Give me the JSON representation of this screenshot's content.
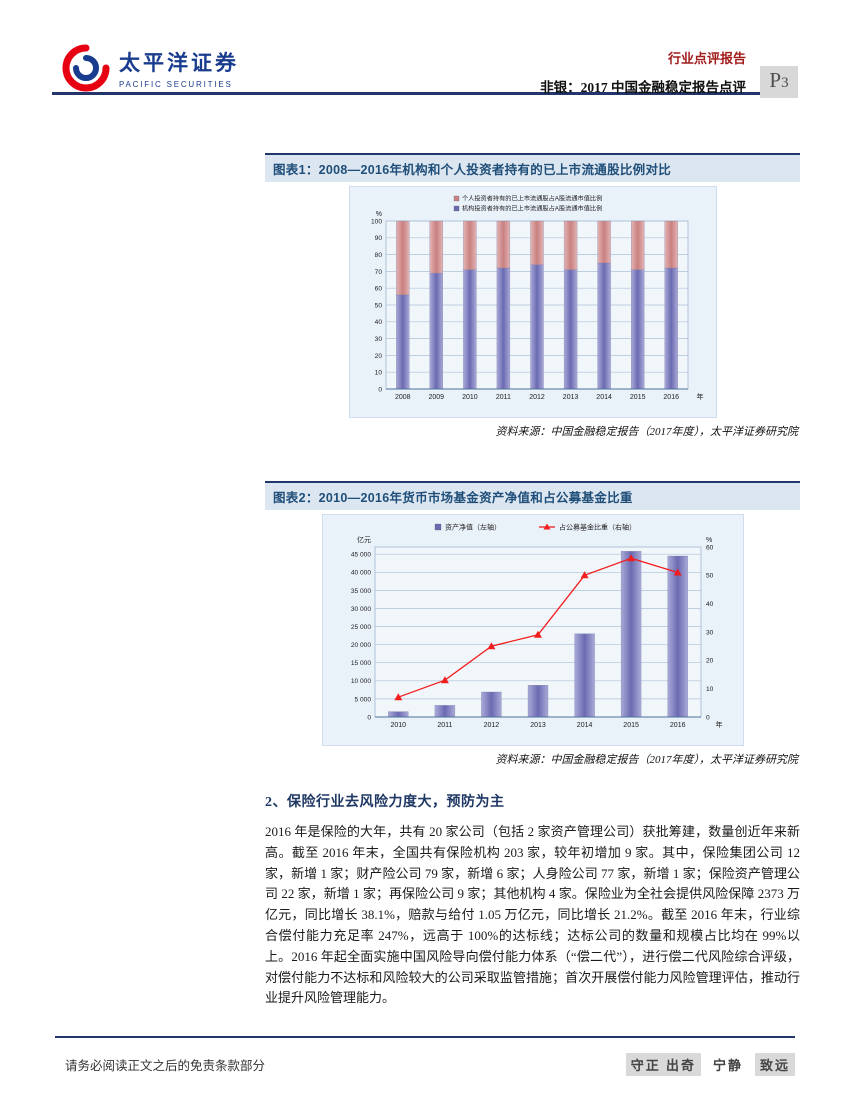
{
  "header": {
    "logo_cn": "太平洋证券",
    "logo_en": "PACIFIC SECURITIES",
    "report_type": "行业点评报告",
    "report_title": "非银：2017 中国金融稳定报告点评",
    "page_letter": "P",
    "page_number": "3"
  },
  "figures": [
    {
      "title": "图表1：2008—2016年机构和个人投资者持有的已上市流通股比例对比",
      "source": "资料来源：中国金融稳定报告（2017年度），太平洋证券研究院",
      "chart_data": {
        "type": "bar",
        "stacked": true,
        "categories": [
          "2008",
          "2009",
          "2010",
          "2011",
          "2012",
          "2013",
          "2014",
          "2015",
          "2016"
        ],
        "series": [
          {
            "name": "机构投资者持有的已上市流通股占A股流通市值比例",
            "color": "#6a6ab2",
            "color_light": "#aaaad8",
            "values": [
              56,
              69,
              71,
              72,
              74,
              71,
              75,
              71,
              72
            ]
          },
          {
            "name": "个人投资者持有的已上市流通股占A股流通市值比例",
            "color": "#c98080",
            "color_light": "#e3b4b4",
            "values": [
              44,
              31,
              29,
              28,
              26,
              29,
              25,
              29,
              28
            ]
          }
        ],
        "legend_reverse": true,
        "ylabel": "%",
        "xlabel": "年",
        "ylim": [
          0,
          100
        ],
        "ystep": 10,
        "grid": true,
        "legend_position": "top"
      }
    },
    {
      "title": "图表2：2010—2016年货币市场基金资产净值和占公募基金比重",
      "source": "资料来源：中国金融稳定报告（2017年度），太平洋证券研究院",
      "chart_data": {
        "type": "combo",
        "categories": [
          "2010",
          "2011",
          "2012",
          "2013",
          "2014",
          "2015",
          "2016"
        ],
        "bar_series": {
          "name": "资产净值（左轴）",
          "color": "#6a6ab2",
          "color_light": "#aaaad8",
          "values": [
            1500,
            3200,
            6900,
            8800,
            23000,
            45800,
            44500
          ]
        },
        "line_series": {
          "name": "占公募基金比重（右轴）",
          "color": "#f21d1d",
          "values": [
            7,
            13,
            25,
            29,
            50,
            56,
            51
          ]
        },
        "left_axis": {
          "unit": "亿元",
          "min": 0,
          "max": 45000,
          "step": 5000
        },
        "right_axis": {
          "unit": "%",
          "min": 0,
          "max": 60,
          "step": 10
        },
        "xlabel": "年",
        "grid": true,
        "legend_position": "top"
      }
    }
  ],
  "section": {
    "heading": "2、保险行业去风险力度大，预防为主",
    "body": "2016 年是保险的大年，共有 20 家公司（包括 2 家资产管理公司）获批筹建，数量创近年来新高。截至 2016 年末，全国共有保险机构 203 家，较年初增加 9 家。其中，保险集团公司 12 家，新增 1 家；财产险公司 79 家，新增 6 家；人身险公司 77 家，新增 1 家；保险资产管理公司 22 家，新增 1 家；再保险公司 9 家；其他机构 4 家。保险业为全社会提供风险保障 2373 万亿元，同比增长 38.1%，赔款与给付 1.05 万亿元，同比增长 21.2%。截至 2016 年末，行业综合偿付能力充足率 247%，远高于 100%的达标线；达标公司的数量和规模占比均在 99%以上。2016 年起全面实施中国风险导向偿付能力体系（“偿二代”），进行偿二代风险综合评级，对偿付能力不达标和风险较大的公司采取监管措施；首次开展偿付能力风险管理评估，推动行业提升风险管理能力。"
  },
  "footer": {
    "disclaimer": "请务必阅读正文之后的免责条款部分",
    "slogan": [
      {
        "text": "守正 出奇",
        "highlight": true
      },
      {
        "text": "宁静",
        "highlight": false
      },
      {
        "text": "致远",
        "highlight": true
      }
    ]
  },
  "colors": {
    "navy_rule": "#23366b",
    "figure_title_blue": "#1f4e79",
    "report_type_red": "#a21c1c",
    "logo_blue": "#1a3c8f",
    "logo_red": "#e60012",
    "bar_blue": "#6a6ab2",
    "bar_pink": "#c98080",
    "line_red": "#f21d1d",
    "badge_gray": "#d8d8d8"
  }
}
